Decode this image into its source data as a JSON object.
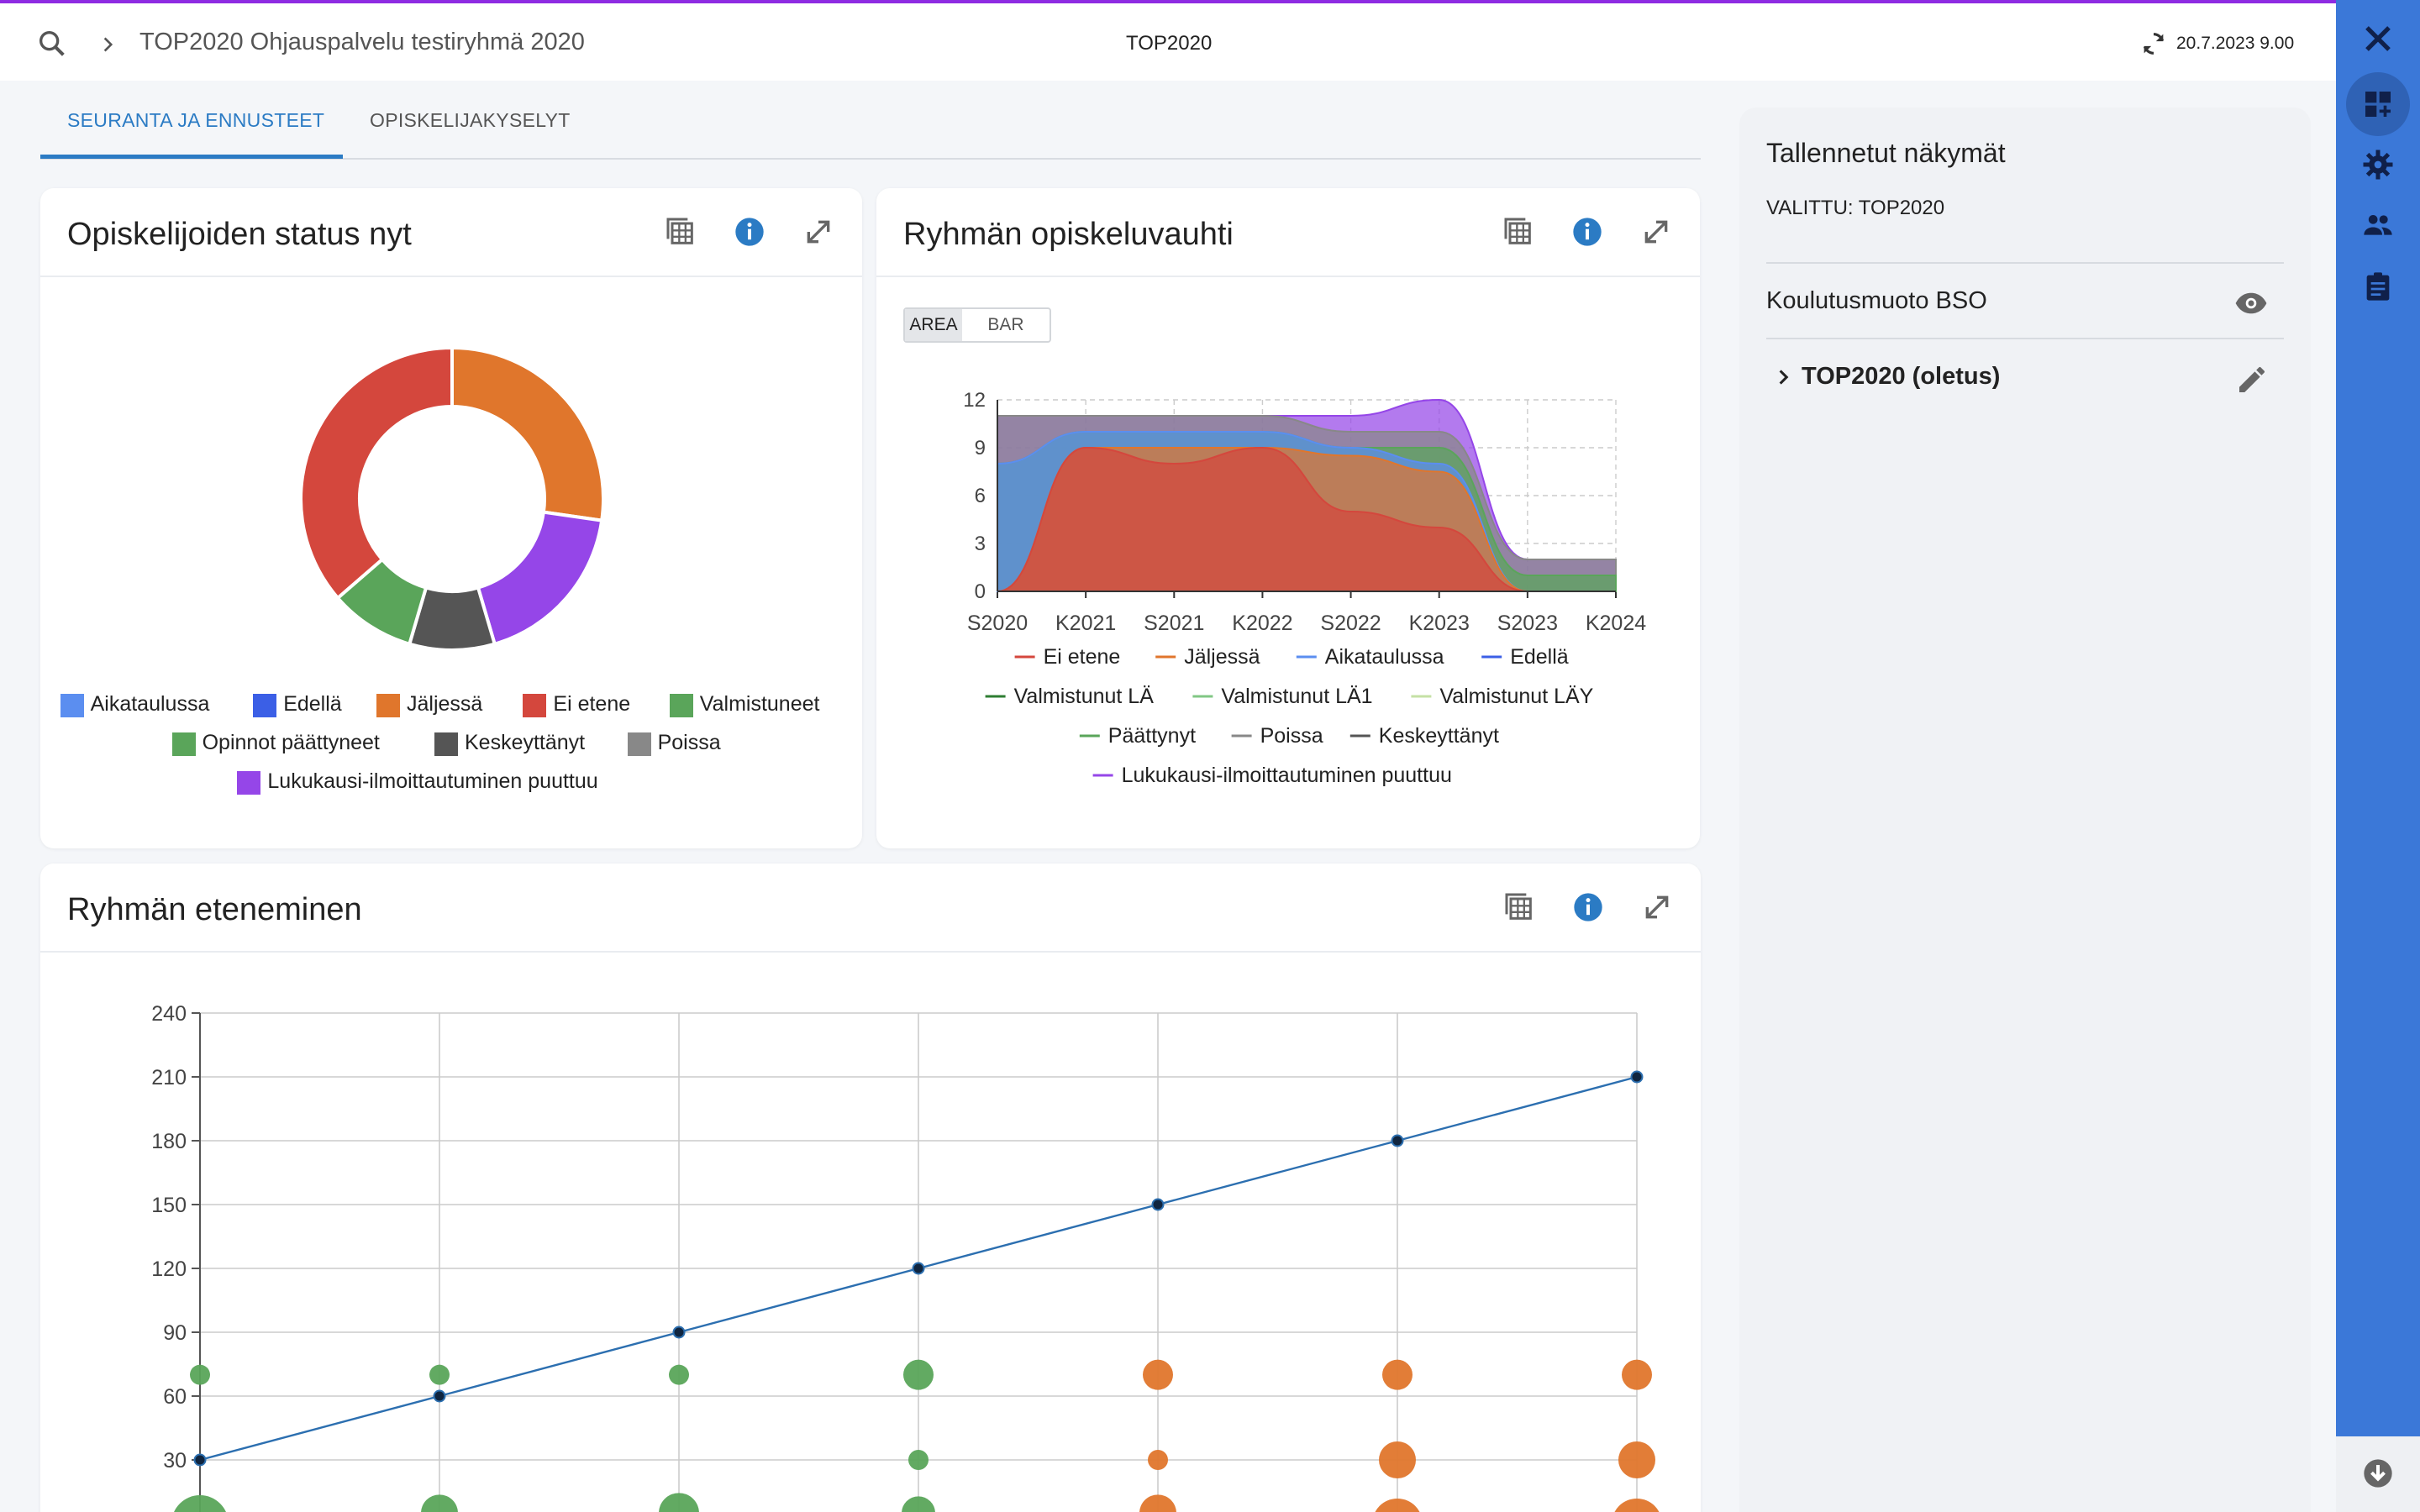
{
  "header": {
    "breadcrumb": "TOP2020 Ohjauspalvelu testiryhmä 2020",
    "center_title": "TOP2020",
    "timestamp": "20.7.2023 9.00"
  },
  "tabs": [
    {
      "label": "SEURANTA JA ENNUSTEET",
      "active": true
    },
    {
      "label": "OPISKELIJAKYSELYT",
      "active": false
    }
  ],
  "colors": {
    "accent": "#2b7bc4",
    "rail": "#3b78d8",
    "topline": "#8e2be2",
    "aikataulussa": "#5b8ef0",
    "edella": "#3b5fe6",
    "jaljessa": "#e0762c",
    "ei_etene": "#d4473d",
    "valmistuneet": "#5aa55a",
    "opinnot_paattyneet": "#5aa55a",
    "keskeyttanyt": "#555555",
    "poissa": "#888888",
    "lukukausi": "#9546e8"
  },
  "status_card": {
    "title": "Opiskelijoiden status nyt",
    "legend": [
      {
        "label": "Aikataulussa",
        "color": "#5b8ef0"
      },
      {
        "label": "Edellä",
        "color": "#3b5fe6"
      },
      {
        "label": "Jäljessä",
        "color": "#e0762c"
      },
      {
        "label": "Ei etene",
        "color": "#d4473d"
      },
      {
        "label": "Valmistuneet",
        "color": "#5aa55a"
      },
      {
        "label": "Opinnot päättyneet",
        "color": "#5aa55a"
      },
      {
        "label": "Keskeyttänyt",
        "color": "#555555"
      },
      {
        "label": "Poissa",
        "color": "#888888"
      },
      {
        "label": "Lukukausi-ilmoittautuminen puuttuu",
        "color": "#9546e8"
      }
    ]
  },
  "pace_card": {
    "title": "Ryhmän opiskeluvauhti",
    "toggle": [
      "AREA",
      "BAR"
    ],
    "legend": [
      {
        "label": "Ei etene",
        "color": "#d4473d"
      },
      {
        "label": "Jäljessä",
        "color": "#e0762c"
      },
      {
        "label": "Aikataulussa",
        "color": "#5b8ef0"
      },
      {
        "label": "Edellä",
        "color": "#3b5fe6"
      },
      {
        "label": "Valmistunut LÄ",
        "color": "#2e7d32"
      },
      {
        "label": "Valmistunut LÄ1",
        "color": "#81c784"
      },
      {
        "label": "Valmistunut LÄY",
        "color": "#c5e1a5"
      },
      {
        "label": "Päättynyt",
        "color": "#5aa55a"
      },
      {
        "label": "Poissa",
        "color": "#888888"
      },
      {
        "label": "Keskeyttänyt",
        "color": "#555555"
      },
      {
        "label": "Lukukausi-ilmoittautuminen puuttuu",
        "color": "#9546e8"
      }
    ]
  },
  "progress_card": {
    "title": "Ryhmän eteneminen"
  },
  "side_panel": {
    "title": "Tallennetut näkymät",
    "selected": "VALITTU: TOP2020",
    "row1": "Koulutusmuoto BSO",
    "row2": "TOP2020 (oletus)"
  },
  "chart_data": [
    {
      "type": "pie",
      "title": "Opiskelijoiden status nyt",
      "donut": true,
      "categories": [
        "Jäljessä",
        "Lukukausi-ilmoittautuminen puuttuu",
        "Keskeyttänyt",
        "Valmistuneet",
        "Ei etene"
      ],
      "values": [
        9,
        6,
        3,
        3,
        12
      ],
      "colors": [
        "#e0762c",
        "#9546e8",
        "#555555",
        "#5aa55a",
        "#d4473d"
      ]
    },
    {
      "type": "area",
      "title": "Ryhmän opiskeluvauhti",
      "x": [
        "S2020",
        "K2021",
        "S2021",
        "K2022",
        "S2022",
        "K2023",
        "S2023",
        "K2024"
      ],
      "ylim": [
        0,
        12
      ],
      "yticks": [
        0,
        3,
        6,
        9,
        12
      ],
      "series": [
        {
          "name": "Ei etene",
          "color": "#d4473d",
          "values": [
            0,
            9,
            8,
            9,
            5,
            4,
            0,
            0
          ]
        },
        {
          "name": "Jäljessä",
          "color": "#e0762c",
          "values": [
            0,
            0,
            1,
            0,
            3.5,
            3.5,
            0,
            0
          ]
        },
        {
          "name": "Aikataulussa",
          "color": "#5b8ef0",
          "values": [
            8,
            1,
            1,
            1,
            0.5,
            0.5,
            0,
            0
          ]
        },
        {
          "name": "Päättynyt",
          "color": "#5aa55a",
          "values": [
            0,
            0,
            0,
            0,
            0,
            1,
            1,
            1
          ]
        },
        {
          "name": "Keskeyttänyt",
          "color": "#888888",
          "values": [
            3,
            1,
            1,
            1,
            1,
            1,
            1,
            1
          ]
        },
        {
          "name": "Lukukausi-ilmoittautuminen puuttuu",
          "color": "#9546e8",
          "values": [
            0,
            0,
            0,
            0,
            1,
            2,
            0,
            0
          ]
        }
      ]
    },
    {
      "type": "scatter",
      "title": "Ryhmän eteneminen",
      "ylim": [
        0,
        240
      ],
      "yticks": [
        30,
        60,
        90,
        120,
        150,
        180,
        210,
        240
      ],
      "line": {
        "color": "#2c6fb0",
        "values": [
          30,
          60,
          90,
          120,
          150,
          180,
          210
        ]
      },
      "points": [
        {
          "x": 0,
          "y": 70,
          "r": 12,
          "color": "#5aa55a"
        },
        {
          "x": 1,
          "y": 70,
          "r": 12,
          "color": "#5aa55a"
        },
        {
          "x": 2,
          "y": 70,
          "r": 12,
          "color": "#5aa55a"
        },
        {
          "x": 3,
          "y": 70,
          "r": 18,
          "color": "#5aa55a"
        },
        {
          "x": 3,
          "y": 30,
          "r": 12,
          "color": "#5aa55a"
        },
        {
          "x": 4,
          "y": 70,
          "r": 18,
          "color": "#e0762c"
        },
        {
          "x": 4,
          "y": 30,
          "r": 12,
          "color": "#e0762c"
        },
        {
          "x": 5,
          "y": 70,
          "r": 18,
          "color": "#e0762c"
        },
        {
          "x": 5,
          "y": 30,
          "r": 22,
          "color": "#e0762c"
        },
        {
          "x": 6,
          "y": 70,
          "r": 18,
          "color": "#e0762c"
        },
        {
          "x": 6,
          "y": 30,
          "r": 22,
          "color": "#e0762c"
        },
        {
          "x": 0,
          "y": 0,
          "r": 34,
          "color": "#5aa55a"
        },
        {
          "x": 1,
          "y": 5,
          "r": 22,
          "color": "#5aa55a"
        },
        {
          "x": 2,
          "y": 5,
          "r": 24,
          "color": "#5aa55a"
        },
        {
          "x": 3,
          "y": 5,
          "r": 20,
          "color": "#5aa55a"
        },
        {
          "x": 4,
          "y": 5,
          "r": 22,
          "color": "#e0762c"
        },
        {
          "x": 5,
          "y": 0,
          "r": 30,
          "color": "#e0762c"
        },
        {
          "x": 6,
          "y": 0,
          "r": 30,
          "color": "#e0762c"
        }
      ]
    }
  ]
}
